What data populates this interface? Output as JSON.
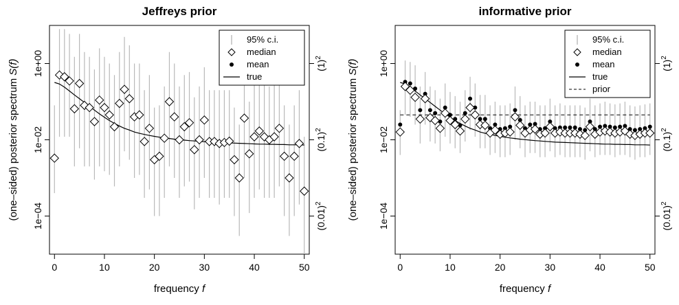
{
  "charts": [
    {
      "title": "Jeffreys prior",
      "xlabel_text": "frequency",
      "xlabel_var": "f",
      "ylabel_text": "(one–sided) posterior spectrum",
      "ylabel_var": "S(f)",
      "xticks": [
        "0",
        "10",
        "20",
        "30",
        "40",
        "50"
      ],
      "yticks": [
        "1e−04",
        "1e−02",
        "1e+00"
      ],
      "right_ticks": [
        {
          "base": "(0.01)",
          "exp": "2"
        },
        {
          "base": "(0.1)",
          "exp": "2"
        },
        {
          "base": "(1)",
          "exp": "2"
        }
      ],
      "legend": [
        {
          "key": "ci",
          "label": "95% c.i."
        },
        {
          "key": "median",
          "label": "median"
        },
        {
          "key": "mean",
          "label": "mean"
        },
        {
          "key": "true",
          "label": "true"
        }
      ]
    },
    {
      "title": "informative prior",
      "xlabel_text": "frequency",
      "xlabel_var": "f",
      "ylabel_text": "(one–sided) posterior spectrum",
      "ylabel_var": "S(f)",
      "xticks": [
        "0",
        "10",
        "20",
        "30",
        "40",
        "50"
      ],
      "yticks": [
        "1e−04",
        "1e−02",
        "1e+00"
      ],
      "right_ticks": [
        {
          "base": "(0.01)",
          "exp": "2"
        },
        {
          "base": "(0.1)",
          "exp": "2"
        },
        {
          "base": "(1)",
          "exp": "2"
        }
      ],
      "legend": [
        {
          "key": "ci",
          "label": "95% c.i."
        },
        {
          "key": "median",
          "label": "median"
        },
        {
          "key": "mean",
          "label": "mean"
        },
        {
          "key": "true",
          "label": "true"
        },
        {
          "key": "prior",
          "label": "prior"
        }
      ]
    }
  ],
  "chart_data": [
    {
      "type": "scatter",
      "title": "Jeffreys prior",
      "xlabel": "frequency f",
      "ylabel": "(one–sided) posterior spectrum S(f)",
      "xlim": [
        -1,
        51
      ],
      "x_ticks": [
        0,
        10,
        20,
        30,
        40,
        50
      ],
      "ylog": true,
      "ylim": [
        1e-05,
        10
      ],
      "y_ticks": [
        0.0001,
        0.01,
        1
      ],
      "grid": false,
      "legend_position": "top-right",
      "x": [
        0,
        1,
        2,
        3,
        4,
        5,
        6,
        7,
        8,
        9,
        10,
        11,
        12,
        13,
        14,
        15,
        16,
        17,
        18,
        19,
        20,
        21,
        22,
        23,
        24,
        25,
        26,
        27,
        28,
        29,
        30,
        31,
        32,
        33,
        34,
        35,
        36,
        37,
        38,
        39,
        40,
        41,
        42,
        43,
        44,
        45,
        46,
        47,
        48,
        49,
        50
      ],
      "series": [
        {
          "name": "median",
          "marker": "diamond",
          "values": [
            0.0033,
            0.5,
            0.45,
            0.35,
            0.065,
            0.3,
            0.08,
            0.07,
            0.03,
            0.11,
            0.07,
            0.045,
            0.022,
            0.09,
            0.21,
            0.12,
            0.04,
            0.045,
            0.009,
            0.02,
            0.003,
            0.0037,
            0.011,
            0.1,
            0.04,
            0.01,
            0.022,
            0.028,
            0.0055,
            0.01,
            0.033,
            0.009,
            0.009,
            0.008,
            0.0085,
            0.0092,
            0.003,
            0.001,
            0.037,
            0.0043,
            0.012,
            0.017,
            0.012,
            0.01,
            0.012,
            0.02,
            0.0037,
            0.001,
            0.0037,
            0.008,
            0.00045
          ]
        },
        {
          "name": "95% c.i.",
          "marker": "interval",
          "lower": [
            0.0004,
            0.012,
            0.012,
            0.012,
            0.002,
            0.006,
            0.002,
            0.002,
            0.0009,
            0.002,
            0.0015,
            0.0012,
            0.0006,
            0.002,
            0.005,
            0.003,
            0.001,
            0.0012,
            0.0003,
            0.0005,
            0.0001,
            0.0001,
            0.0003,
            0.002,
            0.001,
            0.0003,
            0.0006,
            0.0008,
            0.00015,
            0.0003,
            0.001,
            0.0003,
            0.0003,
            0.0002,
            0.0003,
            0.0003,
            0.0001,
            3e-05,
            0.001,
            0.00012,
            0.0003,
            0.0005,
            0.0003,
            0.0003,
            0.0003,
            0.0006,
            0.0001,
            3e-05,
            0.0001,
            0.0002,
            1e-05
          ],
          "upper": [
            0.08,
            8,
            8,
            6,
            1.5,
            6,
            2,
            1.5,
            0.7,
            2.5,
            1.5,
            1,
            0.5,
            2,
            5,
            3,
            1,
            1,
            0.2,
            0.5,
            0.07,
            0.08,
            0.25,
            2,
            1,
            0.25,
            0.5,
            0.6,
            0.13,
            0.25,
            0.8,
            0.2,
            0.2,
            0.2,
            0.2,
            0.2,
            0.07,
            0.025,
            0.8,
            0.1,
            0.3,
            0.4,
            0.3,
            0.25,
            0.3,
            0.5,
            0.08,
            0.025,
            0.08,
            0.2,
            0.012
          ]
        },
        {
          "name": "true",
          "marker": "line",
          "values": [
            0.32,
            0.29,
            0.24,
            0.19,
            0.15,
            0.12,
            0.095,
            0.075,
            0.06,
            0.048,
            0.039,
            0.032,
            0.027,
            0.023,
            0.02,
            0.018,
            0.016,
            0.0148,
            0.0138,
            0.013,
            0.0123,
            0.0117,
            0.0112,
            0.0108,
            0.0104,
            0.0101,
            0.0098,
            0.0095,
            0.0093,
            0.0091,
            0.0089,
            0.0087,
            0.0086,
            0.0085,
            0.0084,
            0.0083,
            0.0082,
            0.0081,
            0.008,
            0.0079,
            0.0078,
            0.0077,
            0.0077,
            0.0076,
            0.0076,
            0.0075,
            0.0075,
            0.0074,
            0.0074,
            0.0074,
            0.0073
          ]
        }
      ]
    },
    {
      "type": "scatter",
      "title": "informative prior",
      "xlabel": "frequency f",
      "ylabel": "(one–sided) posterior spectrum S(f)",
      "xlim": [
        -1,
        51
      ],
      "x_ticks": [
        0,
        10,
        20,
        30,
        40,
        50
      ],
      "ylog": true,
      "ylim": [
        1e-05,
        10
      ],
      "y_ticks": [
        0.0001,
        0.01,
        1
      ],
      "grid": false,
      "legend_position": "top-right",
      "x": [
        0,
        1,
        2,
        3,
        4,
        5,
        6,
        7,
        8,
        9,
        10,
        11,
        12,
        13,
        14,
        15,
        16,
        17,
        18,
        19,
        20,
        21,
        22,
        23,
        24,
        25,
        26,
        27,
        28,
        29,
        30,
        31,
        32,
        33,
        34,
        35,
        36,
        37,
        38,
        39,
        40,
        41,
        42,
        43,
        44,
        45,
        46,
        47,
        48,
        49,
        50
      ],
      "series": [
        {
          "name": "median",
          "marker": "diamond",
          "values": [
            0.016,
            0.25,
            0.2,
            0.13,
            0.035,
            0.12,
            0.038,
            0.032,
            0.02,
            0.05,
            0.032,
            0.025,
            0.017,
            0.035,
            0.07,
            0.045,
            0.025,
            0.024,
            0.015,
            0.018,
            0.014,
            0.015,
            0.016,
            0.04,
            0.024,
            0.015,
            0.018,
            0.019,
            0.014,
            0.015,
            0.022,
            0.015,
            0.016,
            0.015,
            0.015,
            0.015,
            0.014,
            0.013,
            0.022,
            0.014,
            0.016,
            0.017,
            0.016,
            0.015,
            0.016,
            0.017,
            0.014,
            0.013,
            0.014,
            0.015,
            0.015
          ]
        },
        {
          "name": "mean",
          "marker": "dot",
          "values": [
            0.025,
            0.33,
            0.3,
            0.22,
            0.06,
            0.16,
            0.06,
            0.05,
            0.03,
            0.07,
            0.045,
            0.035,
            0.024,
            0.05,
            0.12,
            0.07,
            0.035,
            0.035,
            0.02,
            0.025,
            0.019,
            0.02,
            0.022,
            0.06,
            0.033,
            0.02,
            0.025,
            0.026,
            0.019,
            0.02,
            0.03,
            0.02,
            0.021,
            0.021,
            0.021,
            0.021,
            0.019,
            0.018,
            0.03,
            0.019,
            0.022,
            0.023,
            0.022,
            0.021,
            0.022,
            0.023,
            0.019,
            0.018,
            0.019,
            0.02,
            0.022
          ]
        },
        {
          "name": "95% c.i.",
          "marker": "interval",
          "lower": [
            0.004,
            0.045,
            0.04,
            0.025,
            0.008,
            0.025,
            0.009,
            0.008,
            0.005,
            0.012,
            0.008,
            0.006,
            0.0045,
            0.009,
            0.018,
            0.012,
            0.006,
            0.006,
            0.004,
            0.0045,
            0.0035,
            0.0035,
            0.004,
            0.01,
            0.006,
            0.0035,
            0.0045,
            0.0045,
            0.0035,
            0.0035,
            0.005,
            0.0035,
            0.004,
            0.0035,
            0.0035,
            0.0035,
            0.0035,
            0.003,
            0.005,
            0.0035,
            0.004,
            0.004,
            0.004,
            0.0035,
            0.004,
            0.004,
            0.0035,
            0.003,
            0.0035,
            0.0035,
            0.004
          ],
          "upper": [
            0.06,
            1.2,
            1.1,
            0.9,
            0.25,
            0.6,
            0.25,
            0.2,
            0.12,
            0.3,
            0.18,
            0.14,
            0.1,
            0.2,
            0.45,
            0.3,
            0.15,
            0.15,
            0.08,
            0.1,
            0.08,
            0.08,
            0.09,
            0.25,
            0.14,
            0.08,
            0.1,
            0.1,
            0.08,
            0.08,
            0.12,
            0.08,
            0.09,
            0.08,
            0.08,
            0.08,
            0.08,
            0.07,
            0.12,
            0.08,
            0.09,
            0.1,
            0.09,
            0.085,
            0.09,
            0.1,
            0.08,
            0.075,
            0.08,
            0.085,
            0.09
          ]
        },
        {
          "name": "true",
          "marker": "line",
          "values": [
            0.32,
            0.29,
            0.24,
            0.19,
            0.15,
            0.12,
            0.095,
            0.075,
            0.06,
            0.048,
            0.039,
            0.032,
            0.027,
            0.023,
            0.02,
            0.018,
            0.016,
            0.0148,
            0.0138,
            0.013,
            0.0123,
            0.0117,
            0.0112,
            0.0108,
            0.0104,
            0.0101,
            0.0098,
            0.0095,
            0.0093,
            0.0091,
            0.0089,
            0.0087,
            0.0086,
            0.0085,
            0.0084,
            0.0083,
            0.0082,
            0.0081,
            0.008,
            0.0079,
            0.0078,
            0.0077,
            0.0077,
            0.0076,
            0.0076,
            0.0075,
            0.0075,
            0.0074,
            0.0074,
            0.0074,
            0.0073
          ]
        },
        {
          "name": "prior",
          "marker": "dashed",
          "values": [
            0.045,
            0.045,
            0.045,
            0.045,
            0.045,
            0.045,
            0.045,
            0.045,
            0.045,
            0.045,
            0.045,
            0.045,
            0.045,
            0.045,
            0.045,
            0.045,
            0.045,
            0.045,
            0.045,
            0.045,
            0.045,
            0.045,
            0.045,
            0.045,
            0.045,
            0.045,
            0.045,
            0.045,
            0.045,
            0.045,
            0.045,
            0.045,
            0.045,
            0.045,
            0.045,
            0.045,
            0.045,
            0.045,
            0.045,
            0.045,
            0.045,
            0.045,
            0.045,
            0.045,
            0.045,
            0.045,
            0.045,
            0.045,
            0.045,
            0.045,
            0.045
          ]
        }
      ]
    }
  ]
}
